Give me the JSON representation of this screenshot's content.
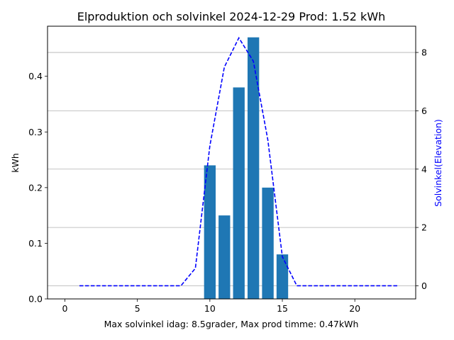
{
  "chart_data": {
    "type": "bar",
    "title": "Elproduktion och solvinkel 2024-12-29 Prod: 1.52 kWh",
    "xlabel": "Max solvinkel idag: 8.5grader, Max prod timme: 0.47kWh",
    "ylabel": "kWh",
    "y2label": "Solvinkel(Elevation)",
    "xlim": [
      -1.2,
      24.2
    ],
    "ylim": [
      0,
      0.49
    ],
    "y2lim": [
      -0.45,
      8.9
    ],
    "xticks": [
      0,
      5,
      10,
      15,
      20
    ],
    "yticks": [
      0.0,
      0.1,
      0.2,
      0.3,
      0.4
    ],
    "y2ticks": [
      0,
      2,
      4,
      6,
      8
    ],
    "grid": "horizontal lines on secondary axis",
    "bar_color": "#1f77b4",
    "line_color": "#0000ff",
    "bars": {
      "x": [
        10,
        11,
        12,
        13,
        14,
        15
      ],
      "values": [
        0.24,
        0.15,
        0.38,
        0.47,
        0.2,
        0.08
      ],
      "width": 0.8
    },
    "elevation_line": {
      "style": "dashed",
      "x": [
        1,
        2,
        3,
        4,
        5,
        6,
        7,
        8,
        9,
        10,
        11,
        12,
        13,
        14,
        15,
        16,
        17,
        18,
        19,
        20,
        21,
        22,
        23
      ],
      "values": [
        0,
        0,
        0,
        0,
        0,
        0,
        0,
        0,
        0.6,
        4.8,
        7.5,
        8.5,
        7.7,
        5.0,
        1.0,
        0,
        0,
        0,
        0,
        0,
        0,
        0,
        0
      ]
    }
  }
}
